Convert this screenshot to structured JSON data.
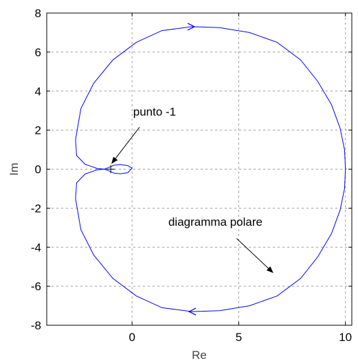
{
  "chart_data": {
    "type": "line",
    "xlabel": "Re",
    "ylabel": "Im",
    "xlim": [
      -4,
      10.3
    ],
    "ylim": [
      -8,
      8
    ],
    "xticks": [
      0,
      5,
      10
    ],
    "yticks": [
      -8,
      -6,
      -4,
      -2,
      0,
      2,
      4,
      6,
      8
    ],
    "grid": true,
    "series": [
      {
        "color": "#0000ff",
        "x": [
          10.0,
          9.96,
          9.75,
          9.35,
          8.7,
          7.9,
          6.8,
          5.5,
          4.1,
          2.8,
          1.4,
          0.2,
          -0.9,
          -1.8,
          -2.4,
          -2.65,
          -2.6,
          -2.2,
          -1.65,
          -1.3,
          -1.1,
          -0.85,
          -0.55,
          -0.2,
          0.0,
          -0.2,
          -0.55,
          -0.85,
          -1.1,
          -1.3,
          -1.65,
          -2.2,
          -2.6,
          -2.65,
          -2.4,
          -1.8,
          -0.9,
          0.2,
          1.4,
          2.8,
          4.1,
          5.5,
          6.8,
          7.9,
          8.7,
          9.35,
          9.75,
          9.96,
          10.0
        ],
        "y": [
          0.0,
          1.0,
          2.1,
          3.3,
          4.5,
          5.6,
          6.5,
          7.0,
          7.25,
          7.3,
          7.1,
          6.5,
          5.6,
          4.4,
          3.1,
          1.5,
          0.7,
          0.25,
          0.04,
          0.0,
          0.08,
          0.2,
          0.24,
          0.18,
          0.05,
          -0.18,
          -0.24,
          -0.2,
          -0.08,
          0.0,
          -0.04,
          -0.25,
          -0.7,
          -1.5,
          -3.1,
          -4.4,
          -5.6,
          -6.5,
          -7.1,
          -7.3,
          -7.25,
          -7.0,
          -6.5,
          -5.6,
          -4.5,
          -3.3,
          -2.1,
          -1.0,
          0.0
        ],
        "arrows": [
          {
            "x": 2.8,
            "y": 7.3,
            "direction": "right"
          },
          {
            "x": 2.8,
            "y": -7.3,
            "direction": "left"
          }
        ]
      }
    ],
    "special_point": {
      "x": -1,
      "y": 0,
      "marker": "+"
    },
    "annotations": [
      {
        "text": "punto -1",
        "text_x": 0.05,
        "text_y": 2.75,
        "arrow_from": [
          0.35,
          2.15
        ],
        "arrow_to": [
          -0.95,
          0.3
        ]
      },
      {
        "text": "diagramma polare",
        "text_x": 1.7,
        "text_y": -2.9,
        "arrow_from": [
          4.9,
          -3.55
        ],
        "arrow_to": [
          6.6,
          -5.3
        ]
      }
    ]
  }
}
